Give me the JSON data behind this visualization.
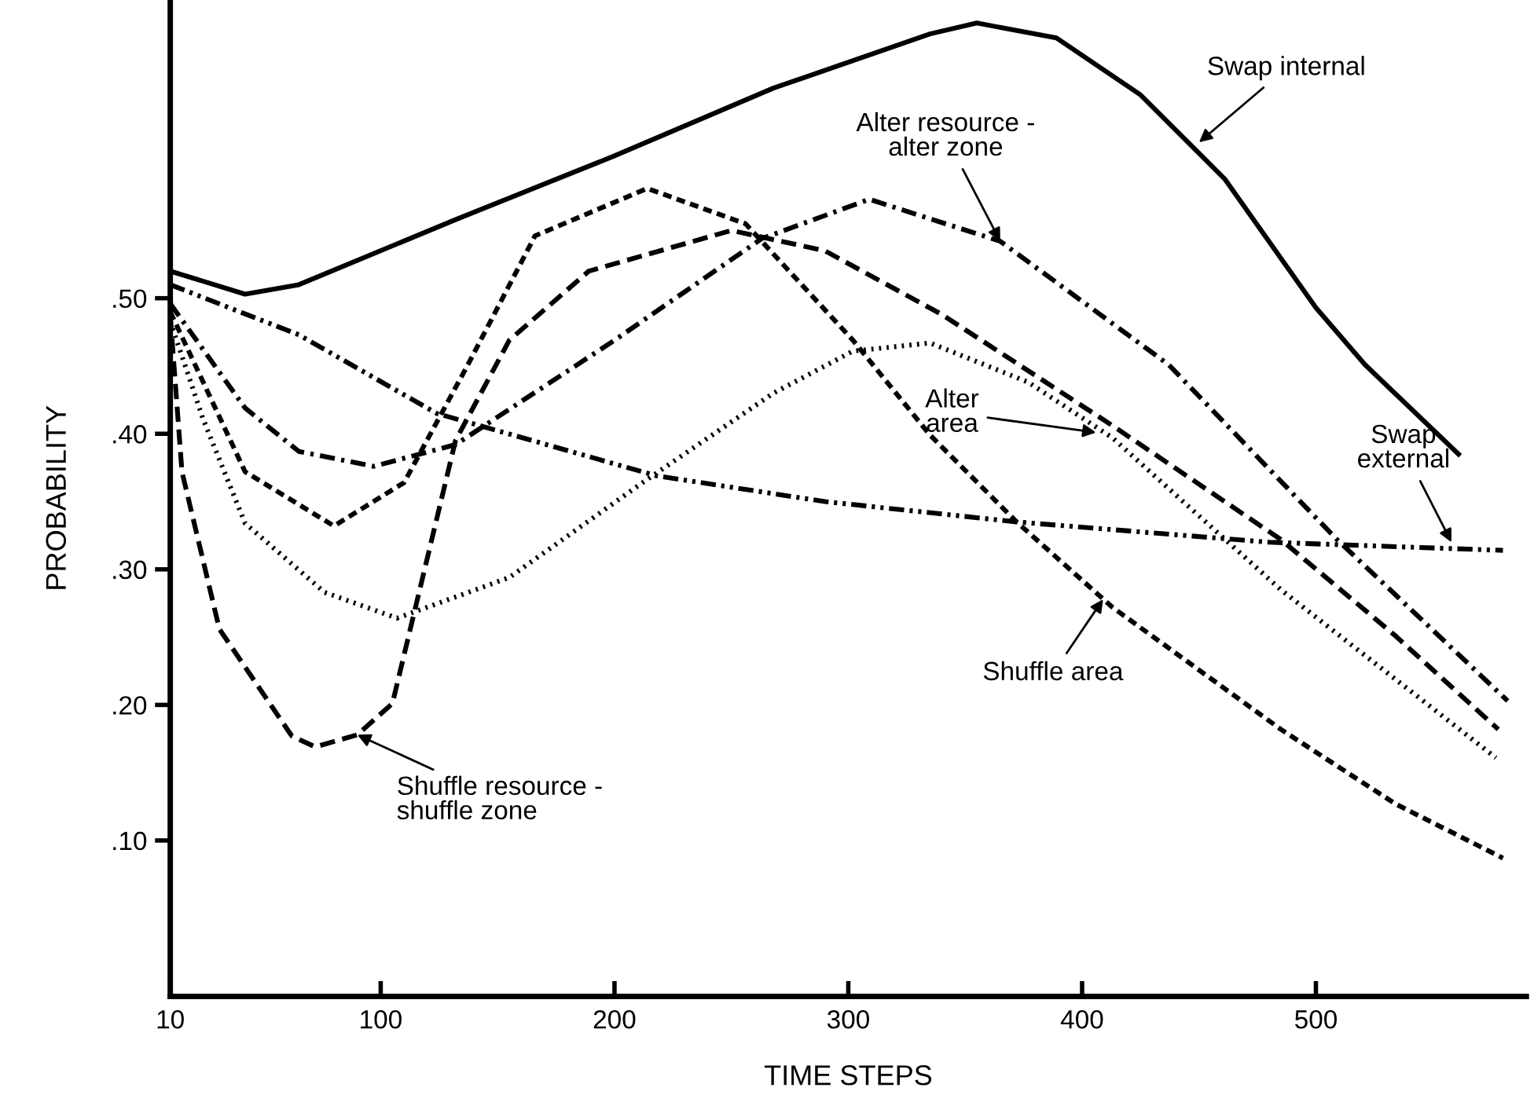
{
  "chart_data": {
    "type": "line",
    "xlabel": "TIME STEPS",
    "ylabel": "PROBABILITY",
    "xlim": [
      10,
      590
    ],
    "ylim": [
      -0.015,
      0.72
    ],
    "xticks": [
      10,
      100,
      200,
      300,
      400,
      500
    ],
    "yticks": [
      {
        "value": 0.1,
        "label": ".10"
      },
      {
        "value": 0.2,
        "label": ".20"
      },
      {
        "value": 0.3,
        "label": ".30"
      },
      {
        "value": 0.4,
        "label": ".40"
      },
      {
        "value": 0.5,
        "label": ".50"
      }
    ],
    "grid": false,
    "legend": false,
    "marker": "none",
    "series": [
      {
        "color": "#000000",
        "line_style": "solid",
        "x": [
          10,
          42,
          65,
          132,
          200,
          268,
          335,
          355,
          389,
          425,
          461,
          500,
          521,
          561
        ],
        "values": [
          0.52,
          0.503,
          0.51,
          0.558,
          0.605,
          0.655,
          0.695,
          0.703,
          0.692,
          0.65,
          0.588,
          0.493,
          0.451,
          0.385
        ]
      },
      {
        "color": "#000000",
        "line_style": "dashdotdot",
        "x": [
          10,
          65,
          124,
          218,
          290,
          372,
          480,
          580
        ],
        "values": [
          0.51,
          0.473,
          0.415,
          0.369,
          0.35,
          0.335,
          0.32,
          0.314
        ]
      },
      {
        "color": "#000000",
        "line_style": "dashdot",
        "x": [
          10,
          42,
          65,
          97,
          132,
          200,
          263,
          309,
          365,
          437,
          509,
          582
        ],
        "values": [
          0.496,
          0.419,
          0.387,
          0.376,
          0.392,
          0.469,
          0.544,
          0.573,
          0.542,
          0.451,
          0.322,
          0.203
        ]
      },
      {
        "color": "#000000",
        "line_style": "dashed",
        "x": [
          10,
          42,
          80,
          110,
          137,
          166,
          214,
          256,
          302,
          335,
          372,
          413,
          485,
          534,
          580
        ],
        "values": [
          0.49,
          0.372,
          0.332,
          0.364,
          0.45,
          0.546,
          0.581,
          0.555,
          0.469,
          0.399,
          0.335,
          0.272,
          0.182,
          0.127,
          0.087
        ]
      },
      {
        "color": "#000000",
        "line_style": "longdash",
        "x": [
          10,
          15,
          31,
          62,
          72,
          90,
          105,
          132,
          155,
          189,
          250,
          290,
          340,
          413,
          485,
          534,
          578
        ],
        "values": [
          0.487,
          0.372,
          0.256,
          0.177,
          0.169,
          0.178,
          0.201,
          0.395,
          0.469,
          0.52,
          0.55,
          0.535,
          0.488,
          0.406,
          0.322,
          0.251,
          0.182
        ]
      },
      {
        "color": "#000000",
        "line_style": "dotted",
        "x": [
          10,
          24,
          42,
          76,
          107,
          155,
          212,
          268,
          302,
          335,
          377,
          413,
          485,
          577
        ],
        "values": [
          0.483,
          0.411,
          0.334,
          0.283,
          0.264,
          0.294,
          0.364,
          0.43,
          0.461,
          0.467,
          0.438,
          0.397,
          0.285,
          0.161
        ]
      }
    ],
    "annotations": [
      {
        "text": "Swap internal",
        "x": 450,
        "y": 0.615
      },
      {
        "text": "Alter resource -\nalter zone",
        "x": 365,
        "y": 0.542
      },
      {
        "text": "Alter\narea",
        "x": 406,
        "y": 0.401
      },
      {
        "text": "Swap\nexternal",
        "x": 558,
        "y": 0.32
      },
      {
        "text": "Shuffle area",
        "x": 409,
        "y": 0.278
      },
      {
        "text": "Shuffle resource -\nshuffle zone",
        "x": 90,
        "y": 0.178
      }
    ]
  }
}
